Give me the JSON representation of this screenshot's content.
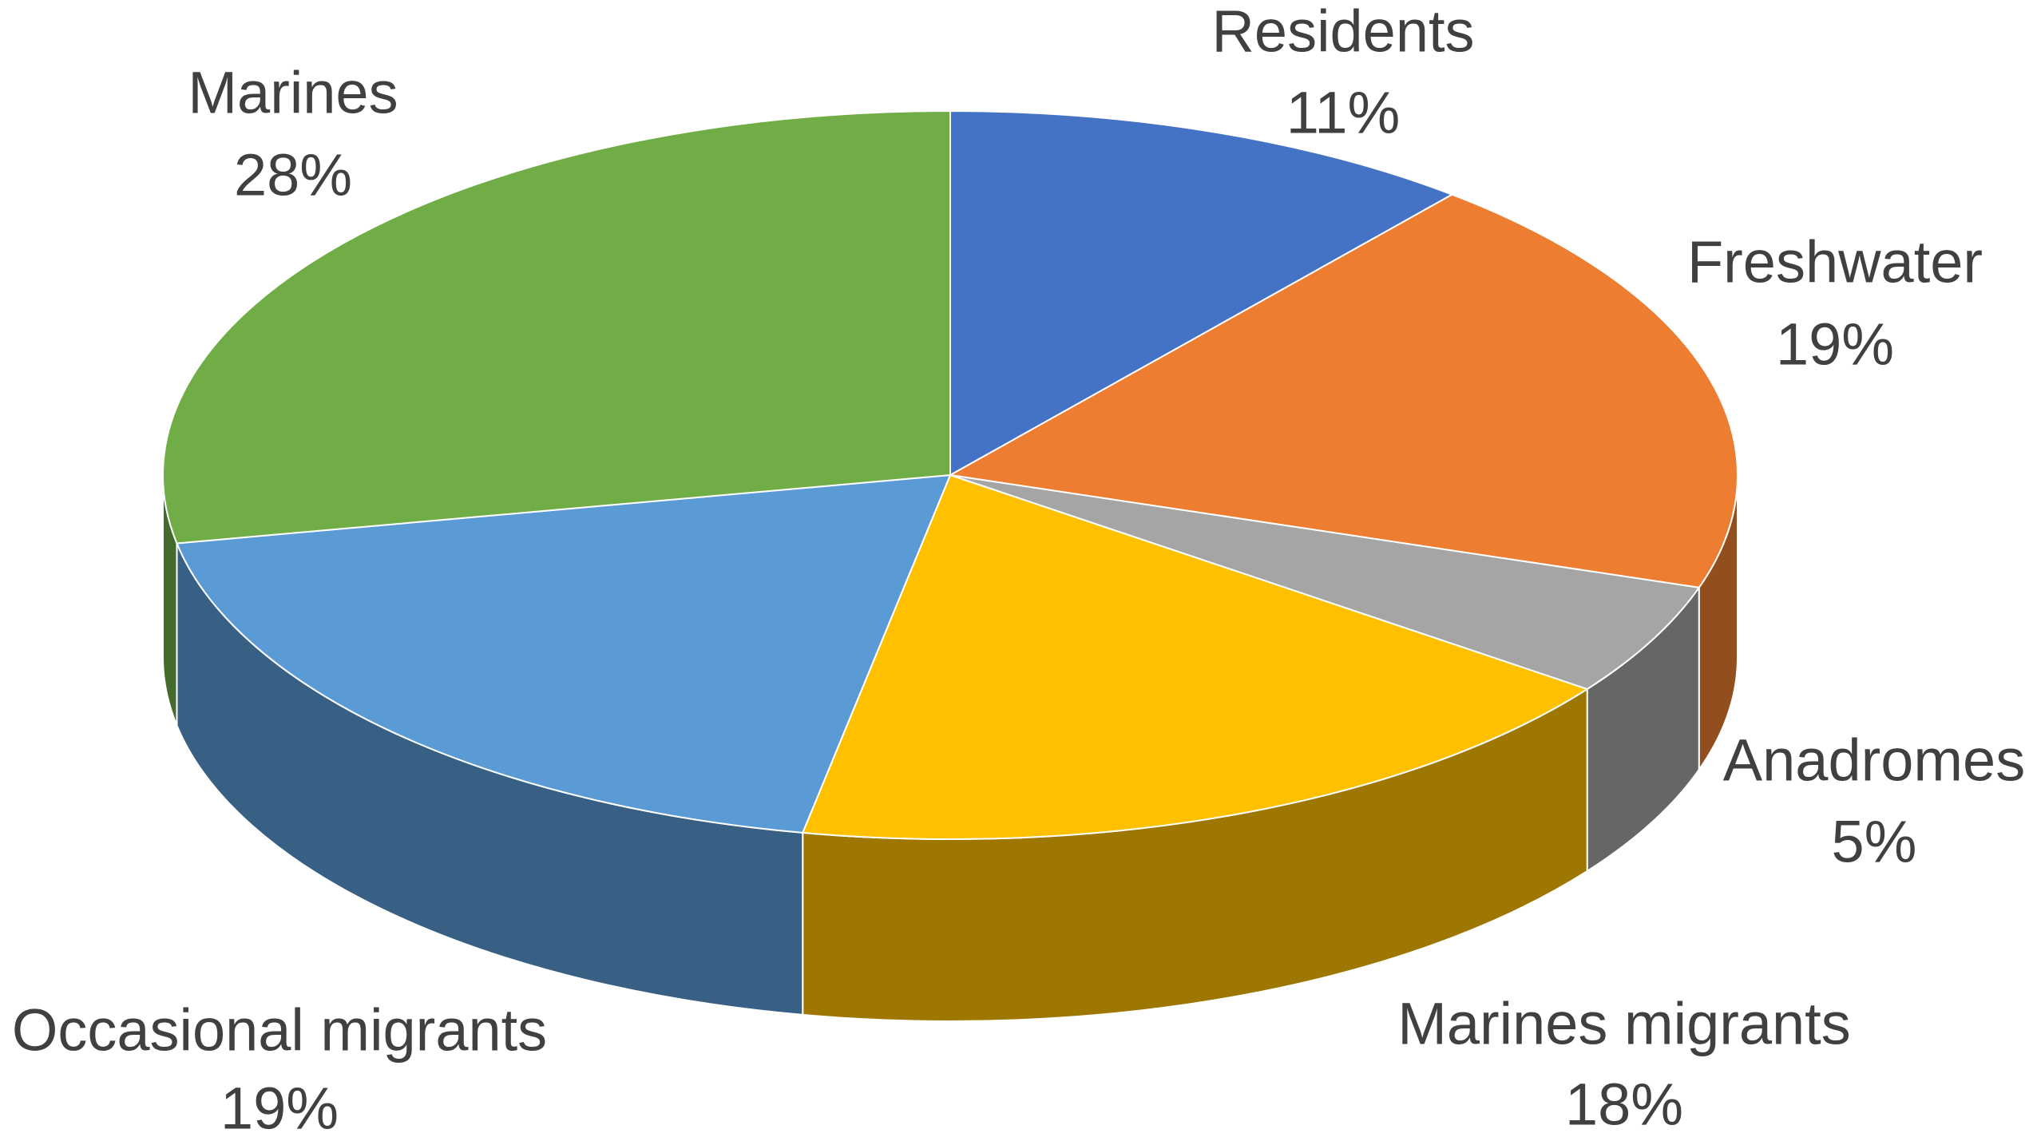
{
  "chart_data": {
    "type": "pie3d",
    "categories": [
      "Residents",
      "Freshwater",
      "Anadromes",
      "Marines migrants",
      "Occasional migrants",
      "Marines"
    ],
    "values": [
      11,
      19,
      5,
      18,
      19,
      28
    ],
    "value_labels": [
      "11%",
      "19%",
      "5%",
      "18%",
      "19%",
      "28%"
    ],
    "colors": [
      "#4472c4",
      "#ed7d31",
      "#a5a5a5",
      "#ffc000",
      "#5b9bd5",
      "#70ad47"
    ]
  }
}
